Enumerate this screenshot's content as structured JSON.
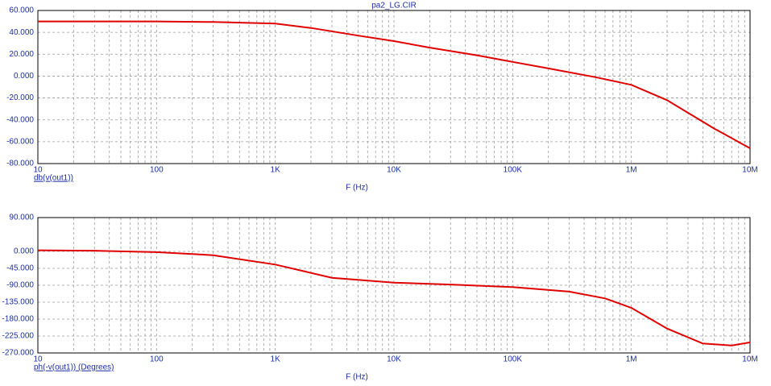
{
  "chart_data": [
    {
      "type": "line",
      "title": "pa2_LG.CIR",
      "xlabel": "F (Hz)",
      "xscale": "log",
      "grid": true,
      "x": [
        10,
        100,
        300,
        1000,
        2000,
        5000,
        10000,
        20000,
        50000,
        100000,
        200000,
        500000,
        1000000,
        2000000,
        5000000,
        10000000
      ],
      "series": [
        {
          "name": "db(v(out1))",
          "color": "#e00000",
          "values": [
            50,
            50,
            49.5,
            48,
            44,
            37,
            32,
            26,
            19,
            13,
            7,
            -1,
            -8,
            -22,
            -48,
            -66
          ]
        }
      ],
      "xlim": [
        10,
        10000000
      ],
      "xticks": [
        10,
        100,
        {
          "value": 1000,
          "label": "1K"
        },
        {
          "value": 10000,
          "label": "10K"
        },
        {
          "value": 100000,
          "label": "100K"
        },
        {
          "value": 1000000,
          "label": "1M"
        },
        {
          "value": 10000000,
          "label": "10M"
        }
      ],
      "ylim": [
        -80,
        60
      ],
      "yticks": [
        {
          "value": 60,
          "label": "60.000"
        },
        {
          "value": 40,
          "label": "40.000"
        },
        {
          "value": 20,
          "label": "20.000"
        },
        {
          "value": 0,
          "label": "0.000"
        },
        {
          "value": -20,
          "label": "-20.000"
        },
        {
          "value": -40,
          "label": "-40.000"
        },
        {
          "value": -60,
          "label": "-60.000"
        },
        {
          "value": -80,
          "label": "-80.000"
        }
      ]
    },
    {
      "type": "line",
      "xlabel": "F (Hz)",
      "xscale": "log",
      "grid": true,
      "x": [
        10,
        30,
        100,
        300,
        1000,
        3000,
        10000,
        30000,
        100000,
        300000,
        600000,
        1000000,
        2000000,
        4000000,
        7000000,
        10000000
      ],
      "series": [
        {
          "name": "ph(-v(out1)) (Degrees)",
          "color": "#e00000",
          "values": [
            3,
            2,
            -2,
            -10,
            -35,
            -70,
            -83,
            -88,
            -95,
            -107,
            -125,
            -150,
            -205,
            -245,
            -250,
            -242
          ]
        }
      ],
      "xlim": [
        10,
        10000000
      ],
      "xticks": [
        10,
        100,
        {
          "value": 1000,
          "label": "1K"
        },
        {
          "value": 10000,
          "label": "10K"
        },
        {
          "value": 100000,
          "label": "100K"
        },
        {
          "value": 1000000,
          "label": "1M"
        },
        {
          "value": 10000000,
          "label": "10M"
        }
      ],
      "ylim": [
        -270,
        90
      ],
      "yticks": [
        {
          "value": 90,
          "label": "90.000"
        },
        {
          "value": 0,
          "label": "0.000"
        },
        {
          "value": -45,
          "label": "-45.000"
        },
        {
          "value": -90,
          "label": "-90.000"
        },
        {
          "value": -135,
          "label": "-135.000"
        },
        {
          "value": -180,
          "label": "-180.000"
        },
        {
          "value": -225,
          "label": "-225.000"
        },
        {
          "value": -270,
          "label": "-270.000"
        }
      ]
    }
  ]
}
